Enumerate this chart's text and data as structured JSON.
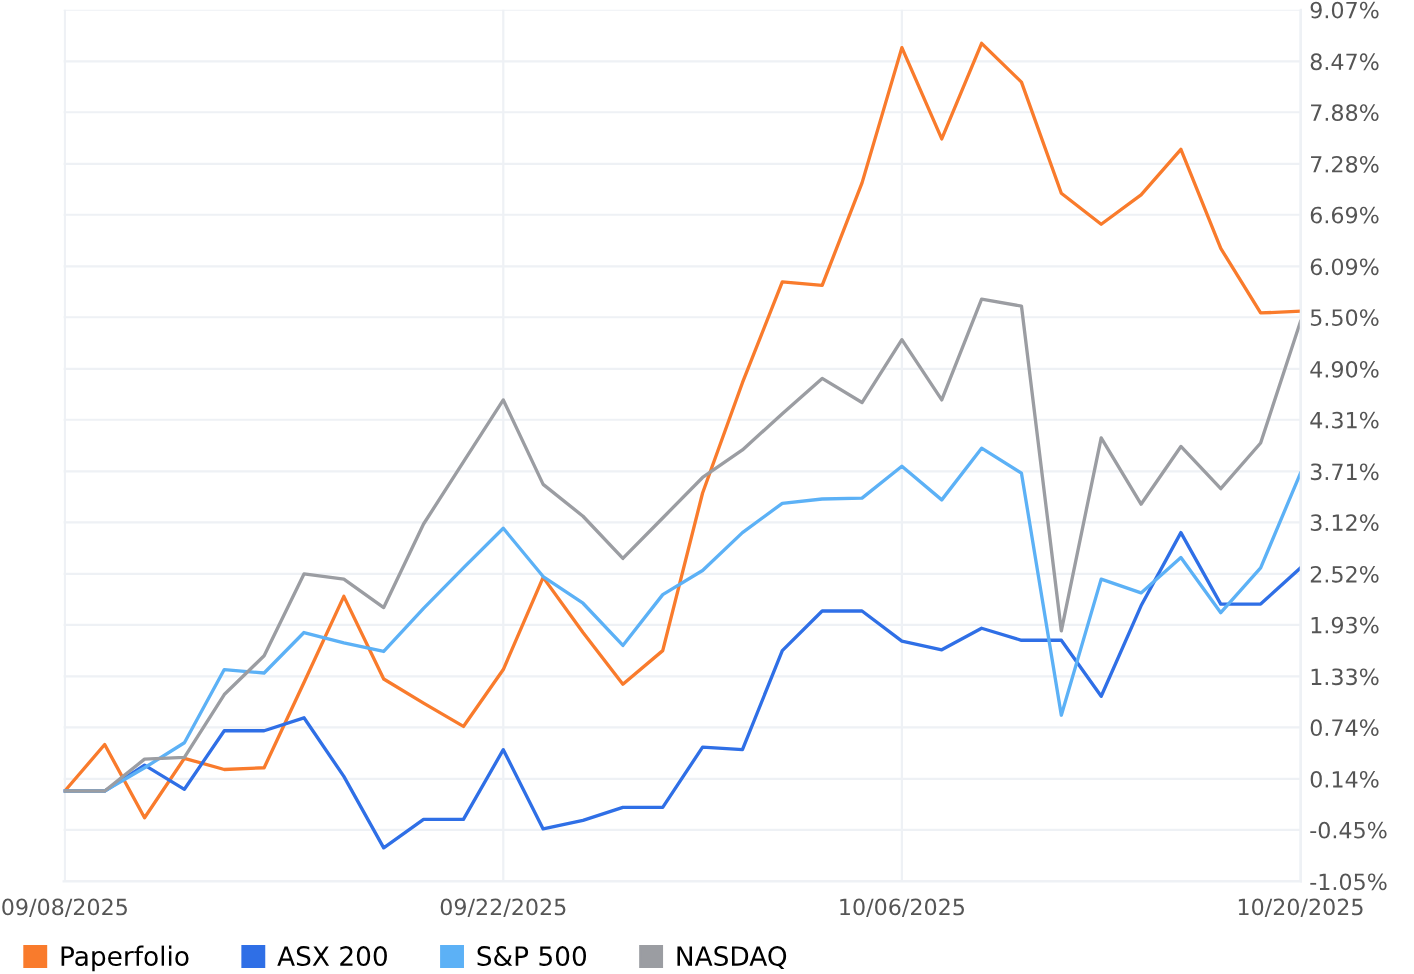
{
  "chart_data": {
    "type": "line",
    "categories": [
      "09/08/2025",
      null,
      null,
      null,
      null,
      null,
      null,
      null,
      null,
      null,
      null,
      "09/22/2025",
      null,
      null,
      null,
      null,
      null,
      null,
      null,
      null,
      null,
      "10/06/2025",
      null,
      null,
      null,
      null,
      null,
      null,
      null,
      null,
      null,
      "10/20/2025"
    ],
    "series": [
      {
        "name": "Paperfolio",
        "color": "#f97b2c",
        "values": [
          0,
          0.54,
          -0.31,
          0.38,
          0.25,
          0.27,
          1.26,
          2.26,
          1.3,
          1.02,
          0.75,
          1.41,
          2.48,
          1.84,
          1.24,
          1.63,
          3.46,
          4.74,
          5.91,
          5.87,
          7.06,
          8.63,
          7.57,
          8.68,
          8.23,
          6.94,
          6.58,
          6.92,
          7.45,
          6.3,
          5.55,
          5.57
        ]
      },
      {
        "name": "ASX 200",
        "color": "#2f6fe6",
        "values": [
          0,
          0,
          0.3,
          0.02,
          0.7,
          0.7,
          0.85,
          0.17,
          -0.66,
          -0.33,
          -0.33,
          0.48,
          -0.44,
          -0.34,
          -0.19,
          -0.19,
          0.51,
          0.48,
          1.63,
          2.09,
          2.09,
          1.74,
          1.64,
          1.89,
          1.75,
          1.75,
          1.1,
          2.15,
          3.0,
          2.17,
          2.17,
          2.59
        ]
      },
      {
        "name": "S&P 500",
        "color": "#5cb1f6",
        "values": [
          0,
          0,
          0.27,
          0.56,
          1.41,
          1.37,
          1.84,
          1.72,
          1.62,
          2.12,
          2.59,
          3.05,
          2.49,
          2.18,
          1.69,
          2.28,
          2.56,
          3.0,
          3.34,
          3.39,
          3.4,
          3.77,
          3.38,
          3.98,
          3.69,
          0.88,
          2.46,
          2.3,
          2.71,
          2.07,
          2.59,
          3.69
        ]
      },
      {
        "name": "NASDAQ",
        "color": "#9b9da2",
        "values": [
          0,
          0,
          0.37,
          0.39,
          1.12,
          1.57,
          2.52,
          2.46,
          2.13,
          3.1,
          3.82,
          4.54,
          3.56,
          3.19,
          2.7,
          3.17,
          3.64,
          3.96,
          4.38,
          4.79,
          4.51,
          5.24,
          4.54,
          5.71,
          5.63,
          1.86,
          4.1,
          3.33,
          4.0,
          3.51,
          4.04,
          5.45
        ]
      }
    ],
    "ylim": [
      -1.05,
      9.07
    ],
    "yticks": [
      {
        "value": 9.07,
        "label": "9.07%"
      },
      {
        "value": 8.47,
        "label": "8.47%"
      },
      {
        "value": 7.88,
        "label": "7.88%"
      },
      {
        "value": 7.28,
        "label": "7.28%"
      },
      {
        "value": 6.69,
        "label": "6.69%"
      },
      {
        "value": 6.09,
        "label": "6.09%"
      },
      {
        "value": 5.5,
        "label": "5.50%"
      },
      {
        "value": 4.9,
        "label": "4.90%"
      },
      {
        "value": 4.31,
        "label": "4.31%"
      },
      {
        "value": 3.71,
        "label": "3.71%"
      },
      {
        "value": 3.12,
        "label": "3.12%"
      },
      {
        "value": 2.52,
        "label": "2.52%"
      },
      {
        "value": 1.93,
        "label": "1.93%"
      },
      {
        "value": 1.33,
        "label": "1.33%"
      },
      {
        "value": 0.74,
        "label": "0.74%"
      },
      {
        "value": 0.14,
        "label": "0.14%"
      },
      {
        "value": -0.45,
        "label": "-0.45%"
      },
      {
        "value": -1.05,
        "label": "-1.05%"
      }
    ],
    "grid": true,
    "legend": "bottom left",
    "marker": "none",
    "line_style": "solid"
  }
}
